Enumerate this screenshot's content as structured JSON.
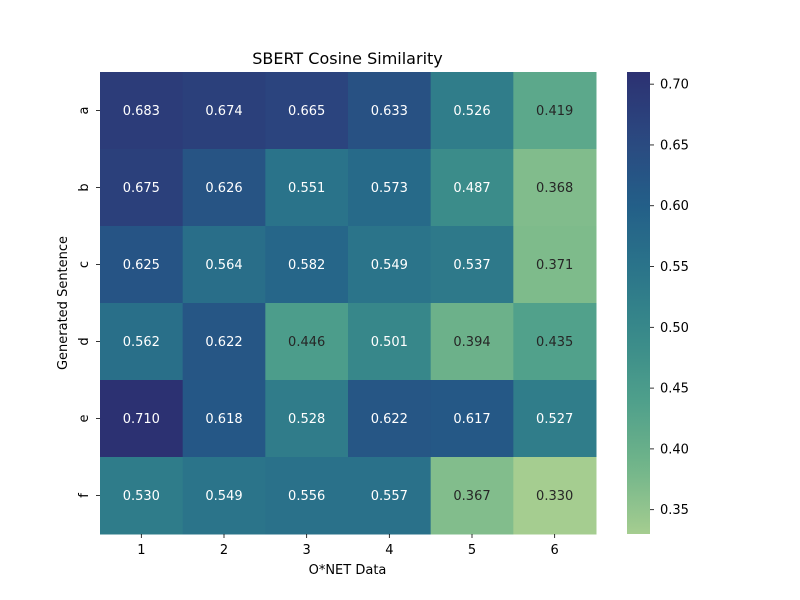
{
  "chart_data": {
    "type": "heatmap",
    "title": "SBERT Cosine Similarity",
    "xlabel": "O*NET Data",
    "ylabel": "Generated Sentence",
    "x_categories": [
      "1",
      "2",
      "3",
      "4",
      "5",
      "6"
    ],
    "y_categories": [
      "a",
      "b",
      "c",
      "d",
      "e",
      "f"
    ],
    "values": [
      [
        0.683,
        0.674,
        0.665,
        0.633,
        0.526,
        0.419
      ],
      [
        0.675,
        0.626,
        0.551,
        0.573,
        0.487,
        0.368
      ],
      [
        0.625,
        0.564,
        0.582,
        0.549,
        0.537,
        0.371
      ],
      [
        0.562,
        0.622,
        0.446,
        0.501,
        0.394,
        0.435
      ],
      [
        0.71,
        0.618,
        0.528,
        0.622,
        0.617,
        0.527
      ],
      [
        0.53,
        0.549,
        0.556,
        0.557,
        0.367,
        0.33
      ]
    ],
    "value_format": "0.000",
    "colormap": "crest",
    "color_range": [
      0.33,
      0.71
    ],
    "colorbar": {
      "ticks": [
        0.35,
        0.4,
        0.45,
        0.5,
        0.55,
        0.6,
        0.65,
        0.7
      ],
      "tick_labels": [
        "0.35",
        "0.40",
        "0.45",
        "0.50",
        "0.55",
        "0.60",
        "0.65",
        "0.70"
      ]
    },
    "colormap_stops": [
      "#a5cd90",
      "#72b58a",
      "#4fa08b",
      "#398a8a",
      "#2b758a",
      "#235e88",
      "#2b4880",
      "#2c3172"
    ],
    "annotation_text_colors": {
      "light": "#ffffff",
      "dark": "#262626"
    }
  }
}
